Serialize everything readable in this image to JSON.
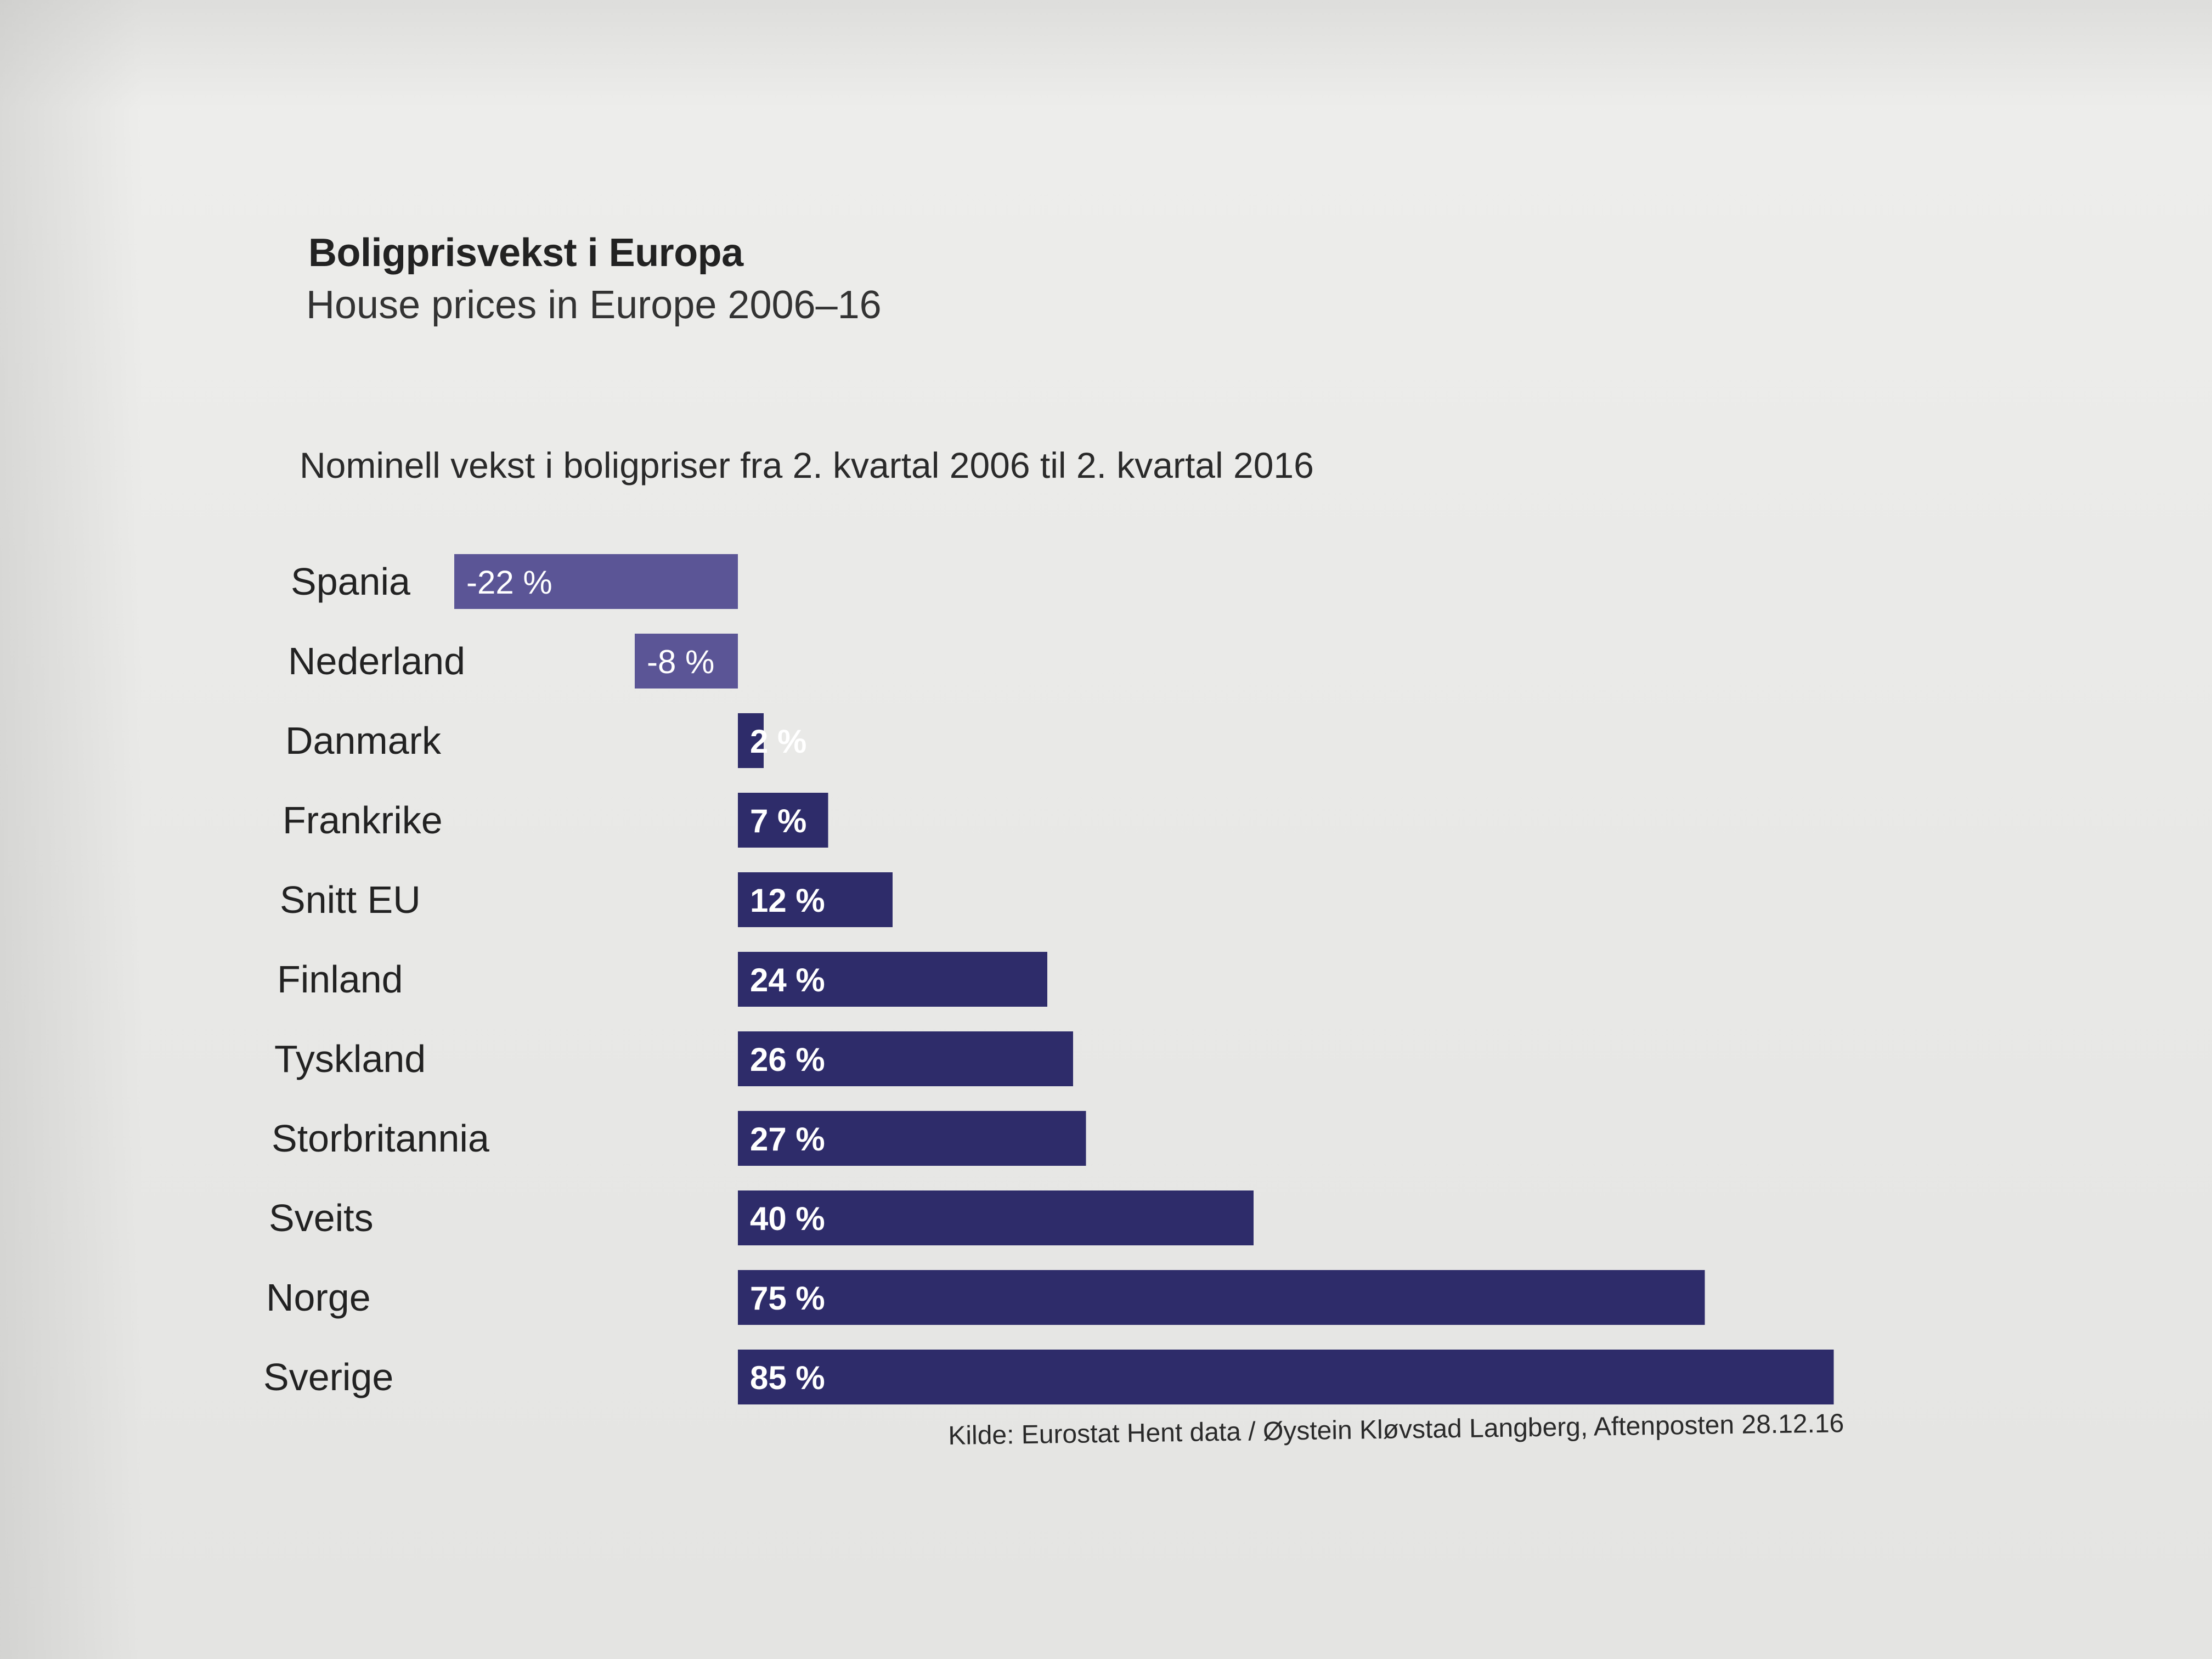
{
  "header": {
    "title": "Boligprisvekst i Europa",
    "subtitle": "House prices in Europe 2006–16"
  },
  "chart_data": {
    "type": "bar",
    "orientation": "horizontal",
    "title": "Nominell vekst i boligpriser fra 2. kvartal 2006 til 2. kvartal 2016",
    "categories": [
      "Spania",
      "Nederland",
      "Danmark",
      "Frankrike",
      "Snitt EU",
      "Finland",
      "Tyskland",
      "Storbritannia",
      "Sveits",
      "Norge",
      "Sverige"
    ],
    "values": [
      -22,
      -8,
      2,
      7,
      12,
      24,
      26,
      27,
      40,
      75,
      85
    ],
    "value_labels": [
      "-22 %",
      "-8 %",
      "2 %",
      "7 %",
      "12 %",
      "24 %",
      "26 %",
      "27 %",
      "40 %",
      "75 %",
      "85 %"
    ],
    "xlim": [
      -22,
      85
    ],
    "unit": "%",
    "grid": false,
    "legend": "none",
    "colors": {
      "positive": "#2e2c6a",
      "negative": "#5b5596",
      "label": "#ffffff"
    }
  },
  "footer": {
    "source": "Kilde: Eurostat Hent data / Øystein Kløvstad Langberg, Aftenposten 28.12.16"
  }
}
